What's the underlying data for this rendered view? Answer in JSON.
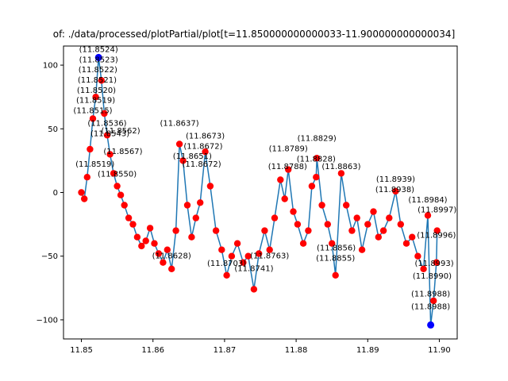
{
  "chart_data": {
    "type": "line",
    "title": "of: ./data/processed/plotPartial/plot[t=11.850000000000033-11.900000000000034]",
    "xlabel": "",
    "ylabel": "",
    "xlim": [
      11.8475,
      11.9025
    ],
    "ylim": [
      -115,
      115
    ],
    "xticks": [
      11.85,
      11.86,
      11.87,
      11.88,
      11.89,
      11.9
    ],
    "xtick_labels": [
      "11.85",
      "11.86",
      "11.87",
      "11.88",
      "11.89",
      "11.90"
    ],
    "yticks": [
      -100,
      -50,
      0,
      50,
      100
    ],
    "ytick_labels": [
      "−100",
      "−50",
      "0",
      "50",
      "100"
    ],
    "grid": false,
    "line_color": "#1f77b4",
    "marker_color": "#ff0000",
    "extrema_color": "#0000ff",
    "series": [
      {
        "values": [
          [
            11.85,
            0
          ],
          [
            11.8504,
            -5
          ],
          [
            11.8508,
            12
          ],
          [
            11.8512,
            34
          ],
          [
            11.8516,
            58
          ],
          [
            11.852,
            75
          ],
          [
            11.8524,
            106
          ],
          [
            11.8528,
            88
          ],
          [
            11.8532,
            62
          ],
          [
            11.8536,
            45
          ],
          [
            11.854,
            30
          ],
          [
            11.8545,
            15
          ],
          [
            11.855,
            5
          ],
          [
            11.8555,
            -2
          ],
          [
            11.856,
            -10
          ],
          [
            11.8566,
            -20
          ],
          [
            11.8572,
            -25
          ],
          [
            11.8578,
            -35
          ],
          [
            11.8584,
            -42
          ],
          [
            11.859,
            -38
          ],
          [
            11.8596,
            -28
          ],
          [
            11.8602,
            -40
          ],
          [
            11.8608,
            -48
          ],
          [
            11.8614,
            -55
          ],
          [
            11.862,
            -45
          ],
          [
            11.8626,
            -60
          ],
          [
            11.8632,
            -30
          ],
          [
            11.8637,
            38
          ],
          [
            11.8642,
            25
          ],
          [
            11.8648,
            -10
          ],
          [
            11.8654,
            -35
          ],
          [
            11.866,
            -20
          ],
          [
            11.8666,
            -8
          ],
          [
            11.8673,
            32
          ],
          [
            11.868,
            5
          ],
          [
            11.8688,
            -30
          ],
          [
            11.8696,
            -45
          ],
          [
            11.8703,
            -65
          ],
          [
            11.871,
            -50
          ],
          [
            11.8718,
            -40
          ],
          [
            11.8726,
            -55
          ],
          [
            11.8733,
            -50
          ],
          [
            11.8741,
            -76
          ],
          [
            11.8748,
            -48
          ],
          [
            11.8756,
            -30
          ],
          [
            11.8763,
            -45
          ],
          [
            11.877,
            -20
          ],
          [
            11.8778,
            10
          ],
          [
            11.8784,
            -5
          ],
          [
            11.8789,
            18
          ],
          [
            11.8796,
            -15
          ],
          [
            11.8802,
            -25
          ],
          [
            11.881,
            -40
          ],
          [
            11.8817,
            -30
          ],
          [
            11.8822,
            5
          ],
          [
            11.8828,
            12
          ],
          [
            11.8829,
            27
          ],
          [
            11.8836,
            -10
          ],
          [
            11.8844,
            -25
          ],
          [
            11.885,
            -40
          ],
          [
            11.8855,
            -65
          ],
          [
            11.8863,
            15
          ],
          [
            11.887,
            -10
          ],
          [
            11.8878,
            -30
          ],
          [
            11.8885,
            -20
          ],
          [
            11.8892,
            -45
          ],
          [
            11.89,
            -25
          ],
          [
            11.8908,
            -15
          ],
          [
            11.8915,
            -35
          ],
          [
            11.8922,
            -30
          ],
          [
            11.893,
            -20
          ],
          [
            11.8939,
            1
          ],
          [
            11.8946,
            -25
          ],
          [
            11.8954,
            -40
          ],
          [
            11.8962,
            -35
          ],
          [
            11.897,
            -50
          ],
          [
            11.8978,
            -60
          ],
          [
            11.8984,
            -18
          ],
          [
            11.8988,
            -104
          ],
          [
            11.8992,
            -85
          ],
          [
            11.8996,
            -55
          ],
          [
            11.8997,
            -30
          ]
        ]
      }
    ],
    "extrema": [
      [
        11.8524,
        106
      ],
      [
        11.8988,
        -104
      ]
    ],
    "annotations": [
      {
        "text": "(11.8524)",
        "x": 11.8524,
        "y": 106
      },
      {
        "text": "(11.8523)",
        "x": 11.8524,
        "y": 98
      },
      {
        "text": "(11.8522)",
        "x": 11.8523,
        "y": 90
      },
      {
        "text": "(11.8521)",
        "x": 11.8522,
        "y": 82
      },
      {
        "text": "(11.8520)",
        "x": 11.8521,
        "y": 74
      },
      {
        "text": "(11.8519)",
        "x": 11.852,
        "y": 66
      },
      {
        "text": "(11.8515)",
        "x": 11.8516,
        "y": 58
      },
      {
        "text": "(11.8536)",
        "x": 11.8536,
        "y": 48
      },
      {
        "text": "(11.8543)",
        "x": 11.854,
        "y": 40
      },
      {
        "text": "(11.8562)",
        "x": 11.8555,
        "y": 42
      },
      {
        "text": "(11.8567)",
        "x": 11.8558,
        "y": 26
      },
      {
        "text": "(11.8519)",
        "x": 11.8519,
        "y": 16
      },
      {
        "text": "(11.8550)",
        "x": 11.855,
        "y": 8
      },
      {
        "text": "(11.8637)",
        "x": 11.8637,
        "y": 48
      },
      {
        "text": "(11.8673)",
        "x": 11.8673,
        "y": 38
      },
      {
        "text": "(11.8672)",
        "x": 11.867,
        "y": 30
      },
      {
        "text": "(11.8651)",
        "x": 11.8655,
        "y": 22
      },
      {
        "text": "(11.8672)",
        "x": 11.8668,
        "y": 16
      },
      {
        "text": "(11.8789)",
        "x": 11.8789,
        "y": 28
      },
      {
        "text": "(11.8829)",
        "x": 11.8829,
        "y": 36
      },
      {
        "text": "(11.8828)",
        "x": 11.8828,
        "y": 20
      },
      {
        "text": "(11.8788)",
        "x": 11.8788,
        "y": 14
      },
      {
        "text": "(11.8863)",
        "x": 11.8863,
        "y": 14
      },
      {
        "text": "(11.8939)",
        "x": 11.8939,
        "y": 4
      },
      {
        "text": "(11.8938)",
        "x": 11.8938,
        "y": -4
      },
      {
        "text": "(11.8984)",
        "x": 11.8984,
        "y": -12
      },
      {
        "text": "(11.8997)",
        "x": 11.8997,
        "y": -20
      },
      {
        "text": "(11.8628)",
        "x": 11.8626,
        "y": -56
      },
      {
        "text": "(11.8703)",
        "x": 11.8703,
        "y": -62
      },
      {
        "text": "(11.8763)",
        "x": 11.8763,
        "y": -56
      },
      {
        "text": "(11.8741)",
        "x": 11.8741,
        "y": -66
      },
      {
        "text": "(11.8855)",
        "x": 11.8855,
        "y": -58
      },
      {
        "text": "(11.8856)",
        "x": 11.8856,
        "y": -50
      },
      {
        "text": "(11.8996)",
        "x": 11.8996,
        "y": -40
      },
      {
        "text": "(11.8993)",
        "x": 11.8993,
        "y": -62
      },
      {
        "text": "(11.8990)",
        "x": 11.899,
        "y": -72
      },
      {
        "text": "(11.8988)",
        "x": 11.8988,
        "y": -86
      },
      {
        "text": "(11.8988)",
        "x": 11.8988,
        "y": -96
      }
    ]
  }
}
